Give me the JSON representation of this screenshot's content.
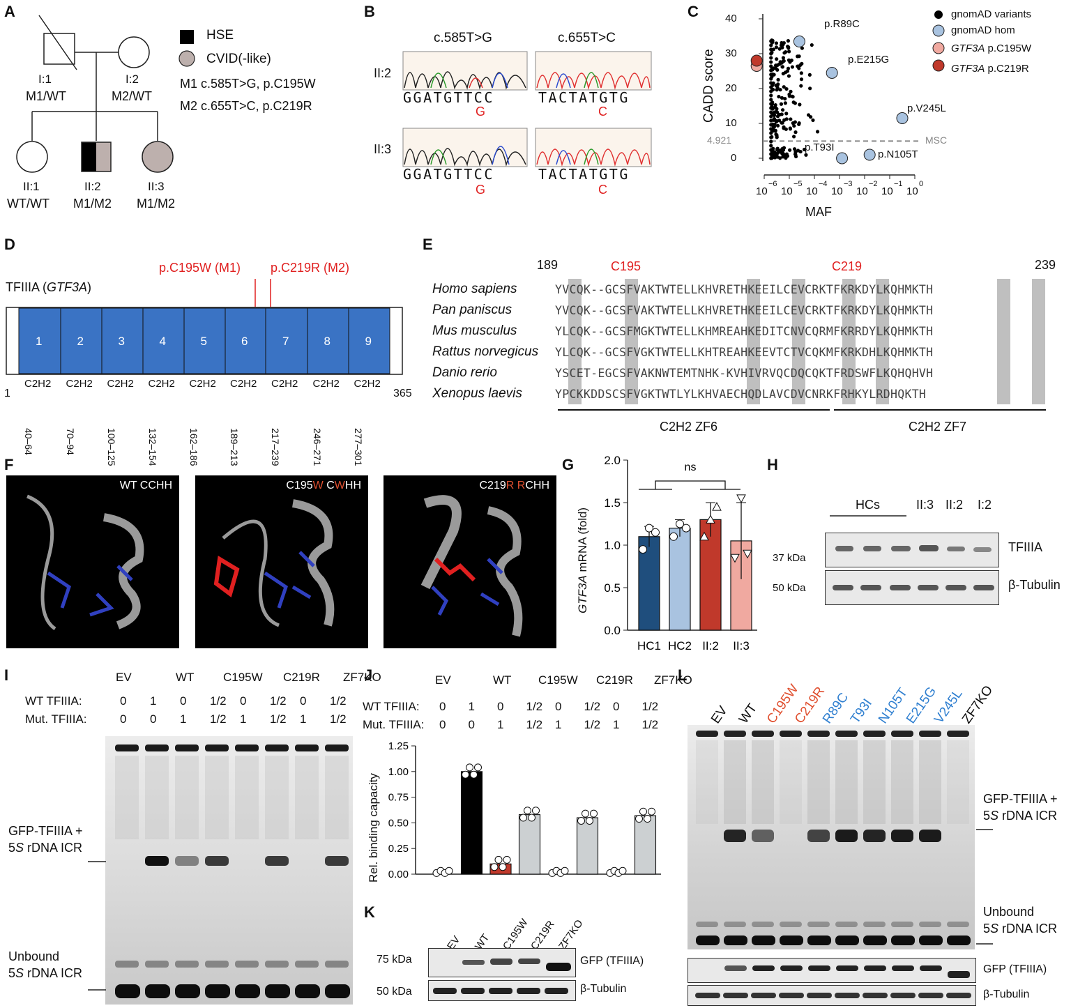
{
  "panels": {
    "A": "A",
    "B": "B",
    "C": "C",
    "D": "D",
    "E": "E",
    "F": "F",
    "G": "G",
    "H": "H",
    "I": "I",
    "J": "J",
    "K": "K",
    "L": "L"
  },
  "a": {
    "legend_hse": "HSE",
    "legend_cvid": "CVID(-like)",
    "m1": "M1  c.585T>G, p.C195W",
    "m2": "M2  c.655T>C, p.C219R",
    "i1_name": "I:1",
    "i1_geno": "M1/WT",
    "i2_name": "I:2",
    "i2_geno": "M2/WT",
    "ii1_name": "II:1",
    "ii1_geno": "WT/WT",
    "ii2_name": "II:2",
    "ii2_geno": "M1/M2",
    "ii3_name": "II:3",
    "ii3_geno": "M1/M2"
  },
  "b": {
    "col1": "c.585T>G",
    "col2": "c.655T>C",
    "row1": "II:2",
    "row2": "II:3",
    "seq1": "GGATGTTCC",
    "seq2": "TACTATGTG",
    "mut1": "G",
    "mut2": "C"
  },
  "c": {
    "ylabel": "CADD score",
    "xlabel": "MAF",
    "msc_label": "MSC",
    "msc_value": "4.921",
    "yticks": [
      "0",
      "10",
      "20",
      "30",
      "40"
    ],
    "xticks": [
      "10",
      "10",
      "10",
      "10",
      "10",
      "10",
      "10"
    ],
    "xexp": [
      "−6",
      "−5",
      "−4",
      "−3",
      "−2",
      "−1",
      "0"
    ],
    "legend": [
      "gnomAD variants",
      "gnomAD hom",
      "p.C195W",
      "p.C219R"
    ],
    "legend_gene": "GTF3A",
    "labels": [
      "p.R89C",
      "p.E215G",
      "p.V245L",
      "p.T93I",
      "p.N105T"
    ]
  },
  "d": {
    "title": "TFIIIA (",
    "gene": "GTF3A",
    "close": ")",
    "mut1": "p.C195W (M1)",
    "mut2": "p.C219R (M2)",
    "start": "1",
    "end": "365",
    "domains": [
      "1",
      "2",
      "3",
      "4",
      "5",
      "6",
      "7",
      "8",
      "9"
    ],
    "dtype": "C2H2",
    "ranges": [
      "40–64",
      "70–94",
      "100–125",
      "132–154",
      "162–186",
      "189–213",
      "217–239",
      "246–271",
      "277–301"
    ]
  },
  "e": {
    "start": "189",
    "end": "239",
    "c195": "C195",
    "c219": "C219",
    "species": [
      "Homo sapiens",
      "Pan paniscus",
      "Mus musculus",
      "Rattus norvegicus",
      "Danio rerio",
      "Xenopus laevis"
    ],
    "seqs": [
      "YVCQK--GCSFVAKTWTELLKHVRETHKEEILCEVCRKTFKRKDYLKQHMKTH",
      "YVCQK--GCSFVAKTWTELLKHVRETHKEEILCEVCRKTFKRKDYLKQHMKTH",
      "YLCQK--GCSFMGKTWTELLKHMREAHKEDITCNVCQRMFKRRDYLKQHMKTH",
      "YLCQK--GCSFVGKTWTELLKHTREAHKEEVTCTVCQKMFKRKDHLKQHMKTH",
      "YSCET-EGCSFVAKNWTEMTNHK-KVHIVRVQCDQCQKTFRDSWFLKQHQHVH",
      "YPCKKDDSCSFVGKTWTLYLKHVAECHQDLAVCDVCNRKFRHKYLRDHQKTH"
    ],
    "zf6": "C2H2 ZF6",
    "zf7": "C2H2 ZF7"
  },
  "f": {
    "wt": "WT CCHH",
    "m1a": "C195",
    "m1b": "W",
    "m1c": "C",
    "m1d": "W",
    "m1e": "HH",
    "m2a": "C219",
    "m2b": "R",
    "m2c": "R",
    "m2d": "CHH"
  },
  "g": {
    "ylabel_gene": "GTF3A",
    "ylabel": " mRNA (fold)",
    "ns": "ns",
    "yticks": [
      "0.0",
      "0.5",
      "1.0",
      "1.5",
      "2.0"
    ]
  },
  "chart_data": [
    {
      "type": "bar",
      "panel": "G",
      "categories": [
        "HC1",
        "HC2",
        "II:2",
        "II:3"
      ],
      "values": [
        1.1,
        1.2,
        1.3,
        1.05
      ],
      "ylabel": "GTF3A mRNA (fold)",
      "ylim": [
        0,
        2.0
      ],
      "colors": [
        "#1f4e7d",
        "#a9c3e0",
        "#c0392b",
        "#f0a9a0"
      ]
    },
    {
      "type": "bar",
      "panel": "J",
      "categories": [
        "EV",
        "WT",
        "C195W",
        "C195W 1/2",
        "C219R",
        "C219R 1/2",
        "ZF7KO",
        "ZF7KO 1/2"
      ],
      "values": [
        0.02,
        1.0,
        0.1,
        0.58,
        0.02,
        0.55,
        0.02,
        0.57
      ],
      "ylabel": "Rel. binding capacity",
      "ylim": [
        0,
        1.25
      ]
    }
  ],
  "h": {
    "hcs": "HCs",
    "lanes": [
      "II:3",
      "II:2",
      "I:2"
    ],
    "tf": "TFIIIA",
    "tub": "β-Tubulin",
    "kda37": "37 kDa",
    "kda50": "50 kDa"
  },
  "ij": {
    "groups": [
      "EV",
      "WT",
      "C195W",
      "C219R",
      "ZF7KO"
    ],
    "wt_label": "WT TFIIIA:",
    "mut_label": "Mut. TFIIIA:",
    "wt_vals": [
      "0",
      "1",
      "0",
      "1/2",
      "0",
      "1/2",
      "0",
      "1/2"
    ],
    "mut_vals": [
      "0",
      "0",
      "1",
      "1/2",
      "1",
      "1/2",
      "1",
      "1/2"
    ],
    "complex1": "GFP-TFIIIA +",
    "complex2a": "5",
    "complex2b": "S",
    "complex2c": " rDNA ICR",
    "unbound1": "Unbound",
    "j_ylabel": "Rel. binding capacity",
    "j_yticks": [
      "0.00",
      "0.25",
      "0.50",
      "0.75",
      "1.00",
      "1.25"
    ]
  },
  "k": {
    "lanes": [
      "EV",
      "WT",
      "C195W",
      "C219R",
      "ZF7KO"
    ],
    "kda75": "75 kDa",
    "kda50": "50 kDa",
    "gfp": "GFP (TFIIIA)",
    "tub": "β-Tubulin"
  },
  "l": {
    "lanes": [
      "EV",
      "WT",
      "C195W",
      "C219R",
      "R89C",
      "T93I",
      "N105T",
      "E215G",
      "V245L",
      "ZF7KO"
    ],
    "lane_colors": [
      "#111",
      "#111",
      "#e05030",
      "#e05030",
      "#2f7fd0",
      "#2f7fd0",
      "#2f7fd0",
      "#2f7fd0",
      "#2f7fd0",
      "#111"
    ],
    "gfp": "GFP (TFIIIA)",
    "tub": "β-Tubulin"
  }
}
